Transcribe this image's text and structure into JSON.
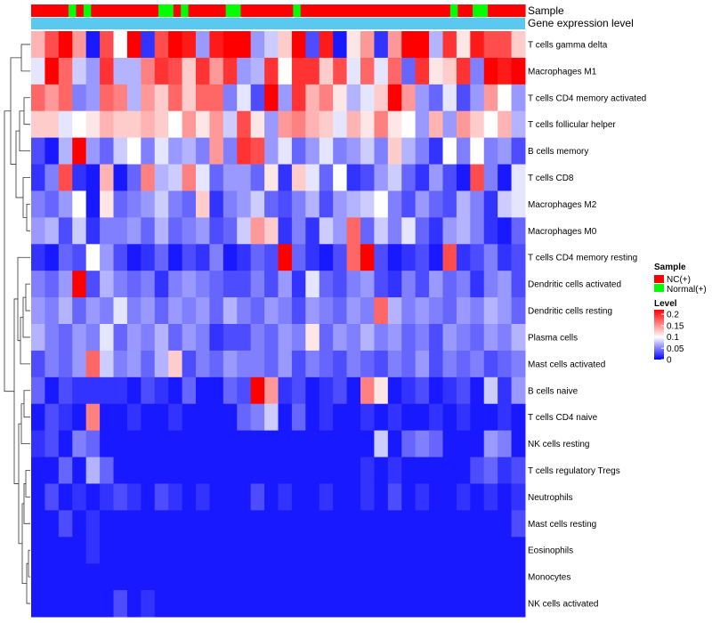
{
  "chart_data": {
    "type": "heatmap",
    "title": "",
    "annotation_tracks": [
      {
        "name": "Sample",
        "label": "Sample"
      },
      {
        "name": "Gene expression level",
        "label": "Gene expression level"
      }
    ],
    "sample_groups": [
      "NC",
      "NC",
      "NC",
      "NC",
      "NC",
      "Normal",
      "NC",
      "Normal",
      "NC",
      "NC",
      "NC",
      "NC",
      "NC",
      "NC",
      "NC",
      "NC",
      "NC",
      "Normal",
      "Normal",
      "NC",
      "Normal",
      "NC",
      "NC",
      "NC",
      "NC",
      "NC",
      "Normal",
      "Normal",
      "NC",
      "NC",
      "NC",
      "NC",
      "NC",
      "NC",
      "NC",
      "Normal",
      "NC",
      "NC",
      "NC",
      "NC",
      "NC",
      "NC",
      "NC",
      "NC",
      "NC",
      "NC",
      "NC",
      "NC",
      "NC",
      "NC",
      "NC",
      "NC",
      "NC",
      "NC",
      "NC",
      "NC",
      "Normal",
      "NC",
      "NC",
      "Normal",
      "Normal",
      "NC",
      "NC",
      "NC",
      "NC",
      "NC"
    ],
    "rows": [
      "T cells gamma delta",
      "Macrophages M1",
      "T cells CD4 memory activated",
      "T cells follicular helper",
      "B cells memory",
      "T cells CD8",
      "Macrophages M2",
      "Macrophages M0",
      "T cells CD4 memory resting",
      "Dendritic cells activated",
      "Dendritic cells resting",
      "Plasma cells",
      "Mast cells activated",
      "B cells naive",
      "T cells CD4 naive",
      "NK cells resting",
      "T cells regulatory  Tregs",
      "Neutrophils",
      "Mast cells resting",
      "Eosinophils",
      "Monocytes",
      "NK cells activated"
    ],
    "row_values": [
      [
        0.13,
        0.17,
        0.2,
        0.14,
        0.01,
        0.17,
        0.1,
        0.2,
        0.02,
        0.17,
        0.2,
        0.19,
        0.06,
        0.19,
        0.21,
        0.21,
        0.06,
        0.08,
        0.12,
        0.21,
        0.03,
        0.19,
        0.01,
        0.11,
        0.14,
        0.02,
        0.14,
        0.21,
        0.21,
        0.07,
        0.18,
        0.11,
        0.19,
        0.17,
        0.17,
        0.12
      ],
      [
        0.09,
        0.21,
        0.16,
        0.08,
        0.06,
        0.18,
        0.07,
        0.07,
        0.15,
        0.18,
        0.17,
        0.12,
        0.18,
        0.14,
        0.18,
        0.06,
        0.07,
        0.18,
        0.1,
        0.18,
        0.18,
        0.12,
        0.17,
        0.09,
        0.16,
        0.09,
        0.16,
        0.04,
        0.18,
        0.11,
        0.12,
        0.18,
        0.05,
        0.21,
        0.19,
        0.21
      ],
      [
        0.16,
        0.14,
        0.16,
        0.05,
        0.06,
        0.16,
        0.15,
        0.07,
        0.14,
        0.12,
        0.16,
        0.12,
        0.16,
        0.16,
        0.05,
        0.09,
        0.03,
        0.22,
        0.06,
        0.18,
        0.13,
        0.15,
        0.11,
        0.07,
        0.09,
        0.12,
        0.22,
        0.14,
        0.06,
        0.04,
        0.09,
        0.03,
        0.06,
        0.14,
        0.1,
        0.06
      ],
      [
        0.12,
        0.12,
        0.09,
        0.1,
        0.11,
        0.13,
        0.12,
        0.12,
        0.13,
        0.12,
        0.1,
        0.14,
        0.11,
        0.14,
        0.08,
        0.17,
        0.11,
        0.06,
        0.14,
        0.15,
        0.13,
        0.12,
        0.09,
        0.13,
        0.11,
        0.15,
        0.11,
        0.1,
        0.06,
        0.13,
        0.06,
        0.14,
        0.12,
        0.1,
        0.13,
        0.07
      ],
      [
        0.03,
        0.01,
        0.07,
        0.22,
        0.06,
        0.04,
        0.08,
        0.1,
        0.05,
        0.09,
        0.06,
        0.07,
        0.05,
        0.14,
        0.05,
        0.18,
        0.17,
        0.06,
        0.09,
        0.04,
        0.06,
        0.09,
        0.05,
        0.06,
        0.08,
        0.05,
        0.12,
        0.07,
        0.05,
        0.02,
        0.1,
        0.05,
        0.1,
        0.05,
        0.06,
        0.03
      ],
      [
        0.02,
        0.05,
        0.17,
        0.02,
        0.01,
        0.13,
        0.01,
        0.04,
        0.15,
        0.07,
        0.08,
        0.15,
        0.09,
        0.04,
        0.06,
        0.06,
        0.04,
        0.11,
        0.02,
        0.12,
        0.09,
        0.04,
        0.1,
        0.02,
        0.03,
        0.06,
        0.08,
        0.04,
        0.02,
        0.06,
        0.03,
        0.01,
        0.17,
        0.05,
        0.01,
        0.09
      ],
      [
        0.05,
        0.04,
        0.06,
        0.1,
        0.01,
        0.11,
        0.04,
        0.05,
        0.06,
        0.08,
        0.05,
        0.04,
        0.12,
        0.02,
        0.05,
        0.06,
        0.08,
        0.04,
        0.03,
        0.05,
        0.07,
        0.03,
        0.06,
        0.07,
        0.08,
        0.1,
        0.05,
        0.03,
        0.06,
        0.04,
        0.03,
        0.07,
        0.05,
        0.02,
        0.08,
        0.09
      ],
      [
        0.06,
        0.07,
        0.03,
        0.08,
        0.02,
        0.05,
        0.05,
        0.06,
        0.04,
        0.07,
        0.04,
        0.05,
        0.06,
        0.03,
        0.04,
        0.08,
        0.14,
        0.12,
        0.02,
        0.05,
        0.02,
        0.08,
        0.06,
        0.16,
        0.04,
        0.08,
        0.05,
        0.09,
        0.04,
        0.02,
        0.06,
        0.07,
        0.05,
        0.02,
        0.01,
        0.04
      ],
      [
        0.02,
        0.01,
        0.04,
        0.03,
        0.1,
        0.06,
        0.03,
        0.01,
        0.02,
        0.04,
        0.01,
        0.03,
        0.02,
        0.05,
        0.01,
        0.02,
        0.04,
        0.03,
        0.2,
        0.04,
        0.02,
        0.01,
        0.03,
        0.16,
        0.21,
        0.03,
        0.01,
        0.02,
        0.03,
        0.01,
        0.17,
        0.02,
        0.03,
        0.05,
        0.02,
        0.03
      ],
      [
        0.05,
        0.04,
        0.06,
        0.2,
        0.03,
        0.07,
        0.05,
        0.04,
        0.05,
        0.02,
        0.05,
        0.06,
        0.05,
        0.04,
        0.03,
        0.03,
        0.05,
        0.03,
        0.06,
        0.02,
        0.09,
        0.04,
        0.03,
        0.05,
        0.06,
        0.03,
        0.02,
        0.05,
        0.03,
        0.06,
        0.04,
        0.05,
        0.02,
        0.05,
        0.06,
        0.03
      ],
      [
        0.06,
        0.05,
        0.07,
        0.04,
        0.06,
        0.05,
        0.09,
        0.05,
        0.06,
        0.04,
        0.06,
        0.05,
        0.06,
        0.04,
        0.07,
        0.05,
        0.04,
        0.06,
        0.05,
        0.03,
        0.06,
        0.05,
        0.04,
        0.06,
        0.05,
        0.16,
        0.07,
        0.05,
        0.06,
        0.05,
        0.04,
        0.06,
        0.05,
        0.07,
        0.06,
        0.04
      ],
      [
        0.07,
        0.05,
        0.04,
        0.06,
        0.05,
        0.09,
        0.04,
        0.06,
        0.05,
        0.07,
        0.04,
        0.06,
        0.05,
        0.02,
        0.03,
        0.03,
        0.05,
        0.04,
        0.06,
        0.05,
        0.11,
        0.04,
        0.06,
        0.05,
        0.07,
        0.05,
        0.06,
        0.04,
        0.05,
        0.03,
        0.06,
        0.05,
        0.04,
        0.06,
        0.05,
        0.07
      ],
      [
        0.03,
        0.05,
        0.04,
        0.06,
        0.16,
        0.08,
        0.05,
        0.06,
        0.04,
        0.07,
        0.12,
        0.03,
        0.05,
        0.04,
        0.06,
        0.05,
        0.05,
        0.04,
        0.06,
        0.03,
        0.05,
        0.04,
        0.03,
        0.05,
        0.04,
        0.03,
        0.05,
        0.04,
        0.06,
        0.03,
        0.05,
        0.04,
        0.05,
        0.03,
        0.04,
        0.05
      ],
      [
        0.04,
        0.01,
        0.03,
        0.02,
        0.02,
        0.02,
        0.02,
        0.01,
        0.03,
        0.02,
        0.01,
        0.04,
        0.01,
        0.01,
        0.04,
        0.03,
        0.23,
        0.14,
        0.02,
        0.03,
        0.01,
        0.02,
        0.03,
        0.01,
        0.15,
        0.11,
        0.01,
        0.02,
        0.03,
        0.01,
        0.02,
        0.03,
        0.01,
        0.08,
        0.02,
        0.06
      ],
      [
        0.01,
        0.03,
        0.02,
        0.01,
        0.15,
        0.01,
        0.01,
        0.02,
        0.01,
        0.01,
        0.02,
        0.01,
        0.01,
        0.01,
        0.01,
        0.04,
        0.05,
        0.08,
        0.01,
        0.04,
        0.01,
        0.02,
        0.01,
        0.01,
        0.02,
        0.01,
        0.02,
        0.01,
        0.01,
        0.02,
        0.01,
        0.02,
        0.01,
        0.01,
        0.02,
        0.01
      ],
      [
        0.02,
        0.03,
        0.01,
        0.05,
        0.04,
        0.01,
        0.01,
        0.01,
        0.01,
        0.01,
        0.01,
        0.01,
        0.01,
        0.01,
        0.01,
        0.01,
        0.01,
        0.01,
        0.01,
        0.01,
        0.01,
        0.01,
        0.01,
        0.01,
        0.01,
        0.08,
        0.01,
        0.04,
        0.05,
        0.04,
        0.01,
        0.01,
        0.01,
        0.06,
        0.05,
        0.01
      ],
      [
        0.01,
        0.01,
        0.04,
        0.01,
        0.07,
        0.04,
        0.01,
        0.01,
        0.01,
        0.01,
        0.01,
        0.01,
        0.01,
        0.01,
        0.01,
        0.01,
        0.01,
        0.01,
        0.01,
        0.01,
        0.01,
        0.01,
        0.01,
        0.01,
        0.02,
        0.01,
        0.02,
        0.01,
        0.01,
        0.01,
        0.01,
        0.01,
        0.03,
        0.04,
        0.02,
        0.03
      ],
      [
        0.01,
        0.03,
        0.01,
        0.02,
        0.01,
        0.02,
        0.03,
        0.02,
        0.01,
        0.03,
        0.02,
        0.01,
        0.02,
        0.01,
        0.01,
        0.01,
        0.03,
        0.01,
        0.02,
        0.01,
        0.01,
        0.02,
        0.01,
        0.01,
        0.02,
        0.01,
        0.03,
        0.01,
        0.02,
        0.01,
        0.01,
        0.02,
        0.01,
        0.02,
        0.01,
        0.02
      ],
      [
        0.01,
        0.01,
        0.03,
        0.01,
        0.02,
        0.01,
        0.01,
        0.01,
        0.01,
        0.01,
        0.01,
        0.01,
        0.01,
        0.01,
        0.01,
        0.01,
        0.01,
        0.01,
        0.01,
        0.01,
        0.01,
        0.01,
        0.01,
        0.01,
        0.01,
        0.01,
        0.01,
        0.01,
        0.01,
        0.01,
        0.01,
        0.01,
        0.01,
        0.01,
        0.01,
        0.03
      ],
      [
        0.01,
        0.01,
        0.01,
        0.01,
        0.02,
        0.01,
        0.01,
        0.01,
        0.01,
        0.01,
        0.01,
        0.01,
        0.01,
        0.01,
        0.01,
        0.01,
        0.01,
        0.01,
        0.01,
        0.01,
        0.01,
        0.01,
        0.01,
        0.01,
        0.01,
        0.01,
        0.01,
        0.01,
        0.01,
        0.01,
        0.01,
        0.01,
        0.01,
        0.01,
        0.01,
        0.01
      ],
      [
        0.01,
        0.01,
        0.01,
        0.01,
        0.01,
        0.01,
        0.01,
        0.01,
        0.01,
        0.01,
        0.01,
        0.01,
        0.01,
        0.01,
        0.01,
        0.01,
        0.01,
        0.01,
        0.01,
        0.01,
        0.01,
        0.01,
        0.01,
        0.01,
        0.01,
        0.01,
        0.01,
        0.01,
        0.01,
        0.01,
        0.01,
        0.01,
        0.01,
        0.01,
        0.01,
        0.01
      ],
      [
        0.01,
        0.01,
        0.01,
        0.01,
        0.01,
        0.01,
        0.03,
        0.01,
        0.02,
        0.01,
        0.01,
        0.01,
        0.01,
        0.01,
        0.01,
        0.01,
        0.01,
        0.01,
        0.01,
        0.01,
        0.01,
        0.01,
        0.01,
        0.01,
        0.01,
        0.01,
        0.01,
        0.01,
        0.01,
        0.01,
        0.01,
        0.01,
        0.01,
        0.01,
        0.01,
        0.01
      ]
    ],
    "legend": {
      "sample_title": "Sample",
      "sample_items": [
        {
          "label": "NC(+)",
          "color": "#ff0000"
        },
        {
          "label": "Normal(+)",
          "color": "#00ff00"
        }
      ],
      "level_title": "Level",
      "level_ticks": [
        "0.2",
        "0.15",
        "0.1",
        "0.05",
        "0"
      ],
      "level_tick_values": [
        0.2,
        0.15,
        0.1,
        0.05,
        0
      ]
    },
    "colors": {
      "low": "#0000ff",
      "mid": "#ffffff",
      "high": "#ff0000",
      "annotation_bar": "#5bc8f0",
      "nc": "#ff0000",
      "normal": "#00ff00"
    },
    "value_range": [
      0,
      0.23
    ]
  }
}
